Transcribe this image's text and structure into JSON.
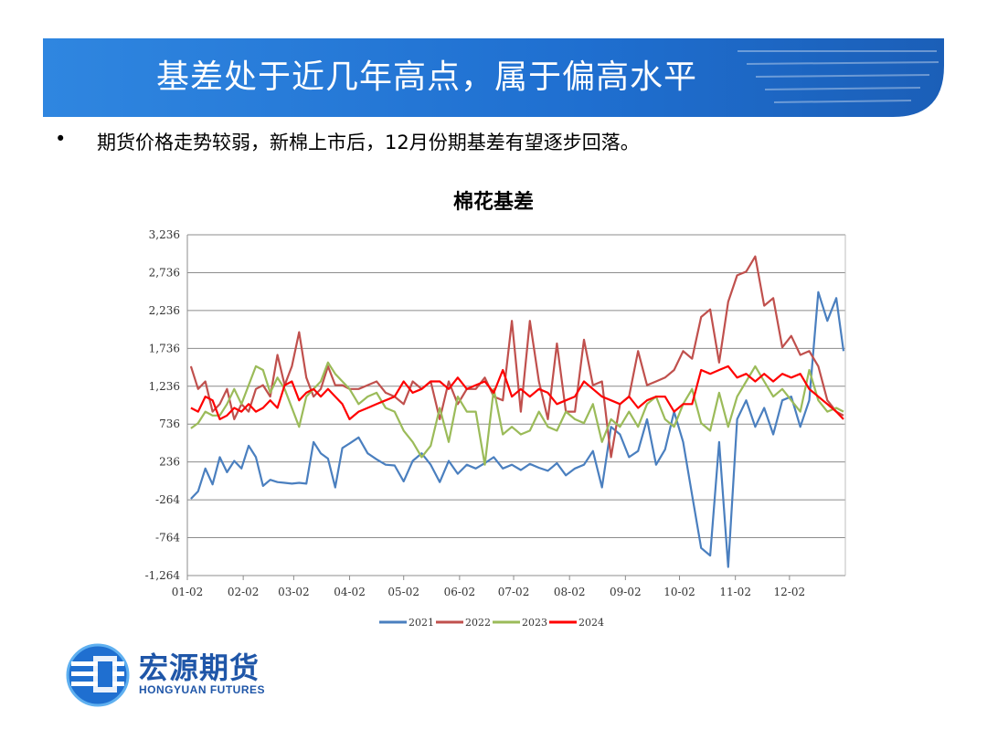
{
  "header": {
    "title": "基差处于近几年高点，属于偏高水平"
  },
  "bullet": {
    "marker": "•",
    "text": "期货价格走势较弱，新棉上市后，12月份期基差有望逐步回落。"
  },
  "logo": {
    "name_cn": "宏源期货",
    "name_en": "HONGYUAN FUTURES"
  },
  "colors": {
    "banner": "#1f6fd0",
    "s2021": "#4a7fbf",
    "s2022": "#c0504d",
    "s2023": "#9bbb59",
    "s2024": "#ff0000"
  },
  "chart_data": {
    "type": "line",
    "title": "棉花基差",
    "xlabel": "",
    "ylabel": "",
    "ylim": [
      -1264,
      3236
    ],
    "y_ticks": [
      -1264,
      -764,
      -264,
      236,
      736,
      1236,
      1736,
      2236,
      2736,
      3236
    ],
    "y_tick_labels": [
      "-1,264",
      "-764",
      "-264",
      "236",
      "736",
      "1,236",
      "1,736",
      "2,236",
      "2,736",
      "3,236"
    ],
    "x_range": [
      0,
      365
    ],
    "x_ticks": [
      0,
      31,
      59,
      90,
      120,
      151,
      181,
      212,
      243,
      273,
      304,
      334
    ],
    "x_tick_labels": [
      "01-02",
      "02-02",
      "03-02",
      "04-02",
      "05-02",
      "06-02",
      "07-02",
      "08-02",
      "09-02",
      "10-02",
      "11-02",
      "12-02"
    ],
    "legend_position": "bottom",
    "series": [
      {
        "name": "2021",
        "color": "#4a7fbf",
        "x": [
          2,
          6,
          10,
          14,
          18,
          22,
          26,
          30,
          34,
          38,
          42,
          46,
          50,
          54,
          58,
          62,
          66,
          70,
          74,
          78,
          82,
          86,
          90,
          95,
          100,
          105,
          110,
          115,
          120,
          125,
          130,
          135,
          140,
          145,
          150,
          155,
          160,
          165,
          170,
          175,
          180,
          185,
          190,
          195,
          200,
          205,
          210,
          215,
          220,
          225,
          230,
          235,
          240,
          245,
          250,
          255,
          260,
          265,
          270,
          275,
          280,
          285,
          290,
          295,
          300,
          305,
          310,
          315,
          320,
          325,
          330,
          335,
          340,
          345,
          350,
          355,
          360,
          364
        ],
        "y": [
          -250,
          -150,
          150,
          -60,
          300,
          100,
          250,
          150,
          450,
          300,
          -80,
          0,
          -30,
          -40,
          -50,
          -40,
          -50,
          500,
          350,
          280,
          -100,
          420,
          480,
          560,
          350,
          270,
          200,
          190,
          -20,
          250,
          350,
          200,
          -30,
          250,
          80,
          200,
          150,
          220,
          300,
          150,
          200,
          130,
          210,
          160,
          120,
          220,
          60,
          150,
          200,
          380,
          -100,
          700,
          600,
          300,
          380,
          800,
          200,
          400,
          900,
          500,
          -200,
          -900,
          -1000,
          500,
          -1150,
          800,
          1050,
          700,
          950,
          600,
          1050,
          1100,
          700,
          1050,
          2480,
          2100,
          2400,
          1700
        ]
      },
      {
        "name": "2022",
        "color": "#c0504d",
        "x": [
          2,
          6,
          10,
          14,
          18,
          22,
          26,
          30,
          34,
          38,
          42,
          46,
          50,
          54,
          58,
          62,
          66,
          70,
          74,
          78,
          82,
          86,
          90,
          95,
          100,
          105,
          110,
          115,
          120,
          125,
          130,
          135,
          140,
          145,
          150,
          155,
          160,
          165,
          170,
          175,
          180,
          185,
          190,
          195,
          200,
          205,
          210,
          215,
          220,
          225,
          230,
          235,
          240,
          245,
          250,
          255,
          260,
          265,
          270,
          275,
          280,
          285,
          290,
          295,
          300,
          305,
          310,
          315,
          320,
          325,
          330,
          335,
          340,
          345,
          350,
          355,
          360,
          364
        ],
        "y": [
          1500,
          1200,
          1300,
          900,
          1000,
          1200,
          800,
          1000,
          900,
          1200,
          1250,
          1100,
          1650,
          1250,
          1500,
          1950,
          1350,
          1100,
          1200,
          1500,
          1250,
          1250,
          1200,
          1200,
          1250,
          1300,
          1150,
          1100,
          1000,
          1300,
          1200,
          1300,
          800,
          1300,
          1000,
          1200,
          1200,
          1350,
          1100,
          1050,
          2100,
          900,
          2100,
          1300,
          800,
          1800,
          900,
          900,
          1850,
          1250,
          1300,
          300,
          1000,
          1100,
          1700,
          1250,
          1300,
          1350,
          1450,
          1700,
          1600,
          2150,
          2250,
          1550,
          2350,
          2700,
          2750,
          2950,
          2300,
          2400,
          1750,
          1900,
          1650,
          1700,
          1500,
          1050,
          900,
          850
        ]
      },
      {
        "name": "2023",
        "color": "#9bbb59",
        "x": [
          2,
          6,
          10,
          14,
          18,
          22,
          26,
          30,
          34,
          38,
          42,
          46,
          50,
          54,
          58,
          62,
          66,
          70,
          74,
          78,
          82,
          86,
          90,
          95,
          100,
          105,
          110,
          115,
          120,
          125,
          130,
          135,
          140,
          145,
          150,
          155,
          160,
          165,
          170,
          175,
          180,
          185,
          190,
          195,
          200,
          205,
          210,
          215,
          220,
          225,
          230,
          235,
          240,
          245,
          250,
          255,
          260,
          265,
          270,
          275,
          280,
          285,
          290,
          295,
          300,
          305,
          310,
          315,
          320,
          325,
          330,
          335,
          340,
          345,
          350,
          355,
          360,
          364
        ],
        "y": [
          680,
          750,
          900,
          850,
          850,
          1000,
          1200,
          1000,
          1250,
          1500,
          1450,
          1150,
          1350,
          1200,
          950,
          700,
          1100,
          1200,
          1300,
          1550,
          1400,
          1300,
          1200,
          1000,
          1100,
          1150,
          950,
          900,
          650,
          500,
          300,
          450,
          950,
          500,
          1100,
          900,
          900,
          200,
          1200,
          600,
          700,
          600,
          650,
          900,
          700,
          650,
          900,
          800,
          750,
          1000,
          500,
          800,
          700,
          900,
          700,
          1000,
          1100,
          800,
          700,
          1000,
          1200,
          750,
          650,
          1150,
          700,
          1100,
          1300,
          1500,
          1300,
          1100,
          1200,
          1050,
          900,
          1450,
          1050,
          900,
          950,
          900
        ]
      },
      {
        "name": "2024",
        "color": "#ff0000",
        "x": [
          2,
          6,
          10,
          14,
          18,
          22,
          26,
          30,
          34,
          38,
          42,
          46,
          50,
          54,
          58,
          62,
          66,
          70,
          74,
          78,
          82,
          86,
          90,
          95,
          100,
          105,
          110,
          115,
          120,
          125,
          130,
          135,
          140,
          145,
          150,
          155,
          160,
          165,
          170,
          175,
          180,
          185,
          190,
          195,
          200,
          205,
          210,
          215,
          220,
          225,
          230,
          235,
          240,
          245,
          250,
          255,
          260,
          265,
          270,
          275,
          280,
          285,
          290,
          295,
          300,
          305,
          310,
          315,
          320,
          325,
          330,
          335,
          340,
          345,
          350,
          355,
          360,
          364
        ],
        "y": [
          950,
          900,
          1100,
          1050,
          800,
          850,
          950,
          900,
          1000,
          900,
          950,
          1050,
          950,
          1250,
          1300,
          1050,
          1150,
          1200,
          1100,
          1200,
          1100,
          1000,
          800,
          900,
          950,
          1000,
          1050,
          1100,
          1300,
          1150,
          1200,
          1300,
          1300,
          1200,
          1350,
          1200,
          1250,
          1300,
          1150,
          1450,
          1100,
          1200,
          1100,
          1200,
          1150,
          1000,
          1050,
          1100,
          1300,
          1200,
          1100,
          1050,
          1000,
          1100,
          950,
          1050,
          1100,
          1100,
          900,
          1000,
          1000,
          1450,
          1400,
          1450,
          1500,
          1350,
          1400,
          1300,
          1400,
          1300,
          1400,
          1350,
          1400,
          1200,
          1100,
          1000,
          900,
          800
        ]
      }
    ]
  }
}
